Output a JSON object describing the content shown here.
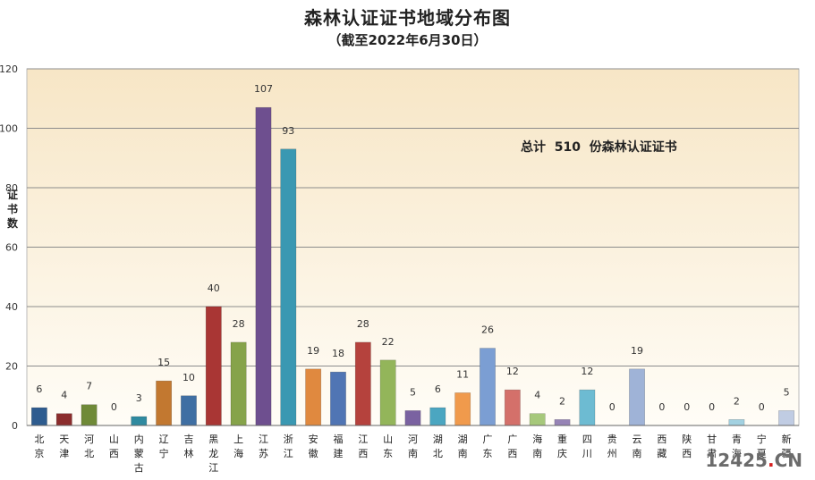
{
  "chart_data": {
    "type": "bar",
    "title": "森林认证证书地域分布图",
    "subtitle": "（截至2022年6月30日）",
    "ylabel": "证书数",
    "ylim": [
      0,
      120
    ],
    "yticks": [
      "0",
      "20",
      "40",
      "60",
      "80",
      "100",
      "120"
    ],
    "annotation": "总计  510  份森林认证证书",
    "categories": [
      "北京",
      "天津",
      "河北",
      "山西",
      "内蒙古",
      "辽宁",
      "吉林",
      "黑龙江",
      "上海",
      "江苏",
      "浙江",
      "安徽",
      "福建",
      "江西",
      "山东",
      "河南",
      "湖北",
      "湖南",
      "广东",
      "广西",
      "海南",
      "重庆",
      "四川",
      "贵州",
      "云南",
      "西藏",
      "陕西",
      "甘肃",
      "青海",
      "宁夏",
      "新疆"
    ],
    "values": [
      6,
      4,
      7,
      0,
      3,
      15,
      10,
      40,
      28,
      107,
      93,
      19,
      18,
      28,
      22,
      5,
      6,
      11,
      26,
      12,
      4,
      2,
      12,
      0,
      19,
      0,
      0,
      0,
      2,
      0,
      5
    ],
    "colors": [
      "#2e5c8f",
      "#8b2d2d",
      "#6f8a38",
      "#5b3f86",
      "#2f8aa0",
      "#c27830",
      "#3f6fa3",
      "#a93634",
      "#86a34a",
      "#6e4f8f",
      "#3a98b2",
      "#e0893f",
      "#5075b4",
      "#b5423d",
      "#93b55a",
      "#7a62a1",
      "#4ba6c1",
      "#f09a4c",
      "#7b9ed3",
      "#d4706a",
      "#a6c87b",
      "#9683b6",
      "#6dbbd2",
      "#f4aa68",
      "#9fb3d7",
      "#e2a39f",
      "#bed69b",
      "#b4a7cc",
      "#a2d1e1",
      "#f6c39d",
      "#c0cce3"
    ],
    "grid": true,
    "legend": "none"
  },
  "watermark": {
    "text_main": "12425",
    "text_dot": ".",
    "text_tld": "CN"
  }
}
